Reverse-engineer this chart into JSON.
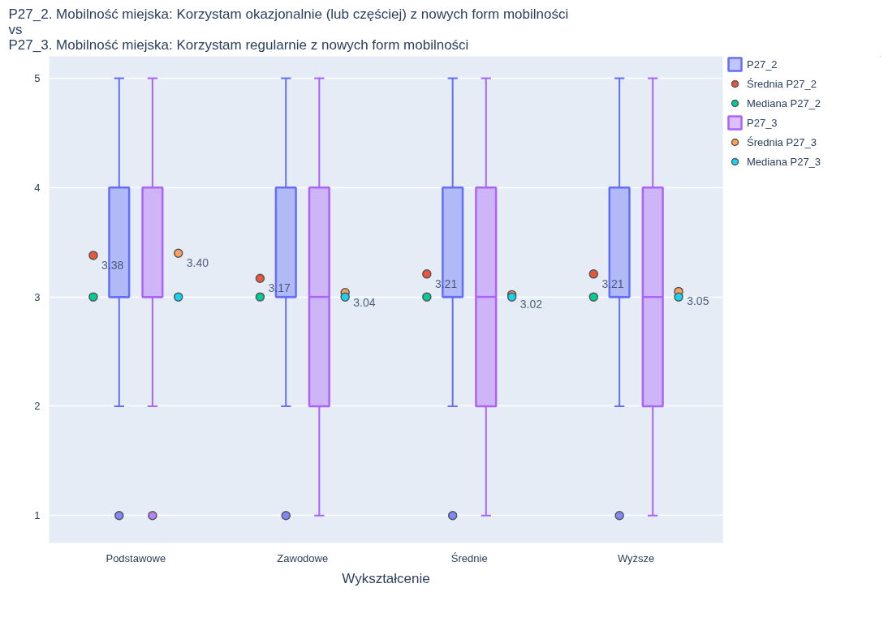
{
  "chart_data": {
    "type": "box",
    "title": "P27_2. Mobilność miejska: Korzystam okazjonalnie (lub częściej) z nowych form mobilności\n vs\n P27_3. Mobilność miejska: Korzystam regularnie z nowych form mobilności",
    "xlabel": "Wykształcenie",
    "categories": [
      "Podstawowe",
      "Zawodowe",
      "Średnie",
      "Wyższe"
    ],
    "ylim": [
      0.75,
      5.2
    ],
    "yticks": [
      1,
      2,
      3,
      4,
      5
    ],
    "grid": "y",
    "legend": "top right",
    "series": [
      {
        "type": "box",
        "name": "P27_2",
        "color": "#636efa",
        "boxes": [
          {
            "low": 2,
            "q1": 3,
            "median": 3,
            "q3": 4,
            "high": 5,
            "outliers": [
              1
            ]
          },
          {
            "low": 2,
            "q1": 3,
            "median": 3,
            "q3": 4,
            "high": 5,
            "outliers": [
              1
            ]
          },
          {
            "low": 2,
            "q1": 3,
            "median": 3,
            "q3": 4,
            "high": 5,
            "outliers": [
              1
            ]
          },
          {
            "low": 2,
            "q1": 3,
            "median": 3,
            "q3": 4,
            "high": 5,
            "outliers": [
              1
            ]
          }
        ]
      },
      {
        "type": "scatter",
        "name": "Średnia P27_2",
        "color": "#ef553b",
        "values": [
          3.38,
          3.17,
          3.21,
          3.21
        ],
        "value_labels": [
          "3.38",
          "3.17",
          "3.21",
          "3.21"
        ]
      },
      {
        "type": "scatter",
        "name": "Mediana P27_2",
        "color": "#00cc96",
        "values": [
          3,
          3,
          3,
          3
        ]
      },
      {
        "type": "box",
        "name": "P27_3",
        "color": "#ab63fa",
        "boxes": [
          {
            "low": 2,
            "q1": 3,
            "median": 3,
            "q3": 4,
            "high": 5,
            "outliers": [
              1
            ]
          },
          {
            "low": 1,
            "q1": 2,
            "median": 3,
            "q3": 4,
            "high": 5
          },
          {
            "low": 1,
            "q1": 2,
            "median": 3,
            "q3": 4,
            "high": 5
          },
          {
            "low": 1,
            "q1": 2,
            "median": 3,
            "q3": 4,
            "high": 5
          }
        ]
      },
      {
        "type": "scatter",
        "name": "Średnia P27_3",
        "color": "#ffa15a",
        "values": [
          3.4,
          3.04,
          3.02,
          3.05
        ],
        "value_labels": [
          "3.40",
          "3.04",
          "3.02",
          "3.05"
        ]
      },
      {
        "type": "scatter",
        "name": "Mediana P27_3",
        "color": "#19d3f3",
        "values": [
          3,
          3,
          3,
          3
        ]
      }
    ]
  }
}
